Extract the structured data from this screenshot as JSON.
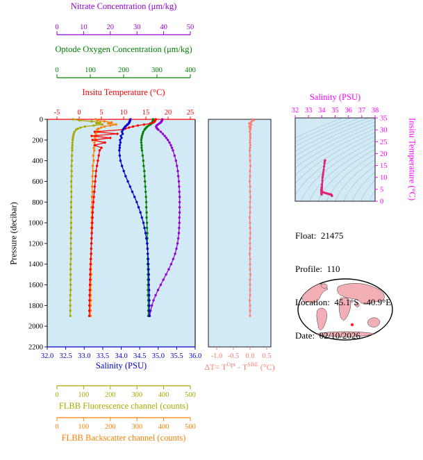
{
  "colors": {
    "plot_bg": "#D2EAF6",
    "frame": "#1A1A1A",
    "temperature": "#FF0000",
    "salinity": "#0000CD",
    "oxygen": "#008000",
    "nitrate": "#9400D3",
    "fluorescence": "#A8A800",
    "backscatter": "#FF8000",
    "delta_t": "#FA8072",
    "ts_labels": "#FF00FF",
    "ts_curve": "#E0246E",
    "contour": "#5E86AE",
    "land": "#F2AFB5",
    "map_marker": "#FF2020"
  },
  "axes": {
    "nitrate": {
      "title": "Nitrate Concentration (μm/kg)",
      "range": [
        0,
        50
      ],
      "ticks": [
        "0",
        "10",
        "20",
        "30",
        "40",
        "50"
      ]
    },
    "oxygen": {
      "title": "Optode Oxygen Concentration (μm/kg)",
      "range": [
        0,
        400
      ],
      "ticks": [
        "0",
        "100",
        "200",
        "300",
        "400"
      ]
    },
    "temperature": {
      "title": "Insitu Temperature (°C)",
      "range": [
        -5,
        25
      ],
      "ticks": [
        "-5",
        "0",
        "5",
        "10",
        "15",
        "20",
        "25"
      ]
    },
    "pressure": {
      "title": "Pressure (decibar)",
      "range": [
        0,
        2200
      ],
      "ticks": [
        "0",
        "200",
        "400",
        "600",
        "800",
        "1000",
        "1200",
        "1400",
        "1600",
        "1800",
        "2000",
        "2200"
      ]
    },
    "salinity": {
      "title": "Salinity (PSU)",
      "range": [
        32,
        36
      ],
      "ticks": [
        "32.0",
        "32.5",
        "33.0",
        "33.5",
        "34.0",
        "34.5",
        "35.0",
        "35.5",
        "36.0"
      ]
    },
    "fluorescence": {
      "title": "FLBB Fluorescence channel (counts)",
      "range": [
        0,
        500
      ],
      "ticks": [
        "0",
        "100",
        "200",
        "300",
        "400",
        "500"
      ]
    },
    "backscatter": {
      "title": "FLBB Backscatter channel (counts)",
      "range": [
        0,
        500
      ],
      "ticks": [
        "0",
        "100",
        "200",
        "300",
        "400",
        "500"
      ]
    },
    "delta_t": {
      "title_parts": [
        "ΔT= T",
        "Opt",
        " - T",
        "SBE",
        " (°C)"
      ],
      "range": [
        -1.25,
        0.625
      ],
      "ticks": [
        "-1.0",
        "-0.5",
        "0.0",
        "0.5"
      ]
    },
    "ts_salinity": {
      "title": "Salinity (PSU)",
      "range": [
        32,
        38
      ],
      "ticks": [
        "32",
        "33",
        "34",
        "35",
        "36",
        "37",
        "38"
      ]
    },
    "ts_temperature": {
      "title": "Insitu Temperature (°C)",
      "range": [
        0,
        35
      ],
      "ticks": [
        "0",
        "5",
        "10",
        "15",
        "20",
        "25",
        "30",
        "35"
      ]
    }
  },
  "float_info": {
    "lines": [
      "Float:  21475",
      "Profile:  110",
      "Location:  45.1°S  -40.9°E",
      "Date:  02/10/2026"
    ]
  },
  "chart_data": [
    {
      "id": "profiles",
      "type": "line",
      "y_axis": "pressure",
      "pressure_dbar": [
        0,
        10,
        20,
        30,
        40,
        50,
        60,
        70,
        80,
        90,
        100,
        120,
        140,
        160,
        180,
        200,
        225,
        250,
        275,
        300,
        350,
        400,
        450,
        500,
        550,
        600,
        650,
        700,
        750,
        800,
        850,
        900,
        950,
        1000,
        1050,
        1100,
        1150,
        1200,
        1250,
        1300,
        1350,
        1400,
        1450,
        1500,
        1550,
        1600,
        1650,
        1700,
        1750,
        1800,
        1850,
        1900
      ],
      "series": [
        {
          "name": "Insitu Temperature (°C)",
          "axis": "temperature",
          "values": [
            17.2,
            17.1,
            17.0,
            16.7,
            16.0,
            14.6,
            13.2,
            12.1,
            11.2,
            10.4,
            9.8,
            3.5,
            8.6,
            2.8,
            7.0,
            3.0,
            5.8,
            3.5,
            5.0,
            4.6,
            4.4,
            4.2,
            4.0,
            3.8,
            3.7,
            3.6,
            3.5,
            3.4,
            3.3,
            3.2,
            3.1,
            3.05,
            3.0,
            2.95,
            2.9,
            2.85,
            2.8,
            2.75,
            2.7,
            2.65,
            2.6,
            2.55,
            2.5,
            2.47,
            2.44,
            2.41,
            2.38,
            2.35,
            2.32,
            2.3,
            2.28,
            2.26
          ]
        },
        {
          "name": "Salinity (PSU)",
          "axis": "salinity",
          "values": [
            34.25,
            34.24,
            34.23,
            34.22,
            34.2,
            34.17,
            34.14,
            34.11,
            34.09,
            34.07,
            34.05,
            34.02,
            34.04,
            33.99,
            34.01,
            33.97,
            33.98,
            33.96,
            33.96,
            33.95,
            33.96,
            33.98,
            34.02,
            34.07,
            34.12,
            34.18,
            34.24,
            34.3,
            34.36,
            34.42,
            34.47,
            34.52,
            34.56,
            34.6,
            34.63,
            34.66,
            34.68,
            34.7,
            34.71,
            34.72,
            34.73,
            34.735,
            34.74,
            34.745,
            34.75,
            34.75,
            34.755,
            34.755,
            34.76,
            34.76,
            34.76,
            34.76
          ]
        },
        {
          "name": "Optode Oxygen Concentration (μm/kg)",
          "axis": "oxygen",
          "values": [
            288,
            288,
            287,
            286,
            284,
            280,
            275,
            271,
            268,
            265,
            263,
            259,
            257,
            255,
            254,
            253,
            253,
            254,
            254,
            255,
            257,
            259,
            260,
            262,
            263,
            264,
            265,
            266,
            267,
            268,
            268,
            269,
            269,
            270,
            270,
            271,
            271,
            271,
            272,
            272,
            272,
            272,
            273,
            273,
            273,
            273,
            273,
            273,
            274,
            274,
            274,
            274
          ]
        },
        {
          "name": "Nitrate Concentration (μm/kg)",
          "axis": "nitrate",
          "values": [
            39.5,
            39.4,
            39.2,
            38.9,
            38.4,
            37.8,
            37.4,
            37.2,
            37.3,
            37.6,
            38.0,
            38.9,
            39.7,
            40.4,
            41.0,
            41.6,
            42.2,
            42.7,
            43.1,
            43.5,
            44.1,
            44.6,
            45.0,
            45.3,
            45.5,
            45.7,
            45.8,
            45.9,
            46.0,
            46.0,
            46.0,
            46.0,
            45.9,
            45.9,
            45.8,
            45.7,
            45.5,
            45.2,
            44.8,
            44.3,
            43.6,
            42.8,
            41.9,
            40.9,
            39.9,
            38.9,
            37.9,
            37.0,
            36.2,
            35.6,
            35.1,
            34.8
          ]
        },
        {
          "name": "FLBB Fluorescence channel (counts)",
          "axis": "fluorescence",
          "values": [
            60,
            85,
            130,
            162,
            148,
            170,
            138,
            105,
            88,
            78,
            72,
            66,
            63,
            61,
            60,
            59,
            58,
            58,
            57,
            57,
            56,
            56,
            55,
            55,
            55,
            54,
            54,
            54,
            54,
            53,
            53,
            53,
            53,
            53,
            53,
            52,
            52,
            52,
            52,
            52,
            52,
            51,
            51,
            51,
            51,
            51,
            51,
            50,
            50,
            50,
            50,
            50
          ]
        },
        {
          "name": "FLBB Backscatter channel (counts)",
          "axis": "backscatter",
          "values": [
            145,
            152,
            178,
            205,
            192,
            222,
            200,
            178,
            165,
            155,
            150,
            158,
            145,
            150,
            142,
            146,
            140,
            143,
            138,
            140,
            136,
            138,
            134,
            135,
            133,
            134,
            132,
            133,
            131,
            132,
            130,
            131,
            130,
            130,
            129,
            130,
            129,
            129,
            128,
            129,
            128,
            128,
            127,
            128,
            127,
            127,
            127,
            126,
            127,
            126,
            126,
            126
          ]
        }
      ]
    },
    {
      "id": "delta_t_profile",
      "type": "line",
      "x_axis": "delta_t",
      "y_axis": "pressure",
      "values": [
        0.08,
        0.11,
        0.05,
        0.02,
        -0.03,
        0.04,
        0.01,
        -0.02,
        0.02,
        0.0,
        0.01,
        -0.01,
        0.01,
        0.0,
        0.01,
        0.0,
        0.0,
        0.01,
        0.0,
        -0.01,
        0.0,
        0.0,
        0.01,
        0.0,
        0.0,
        -0.01,
        0.0,
        0.0,
        0.01,
        0.0,
        0.0,
        0.0,
        -0.01,
        0.0,
        0.0,
        0.01,
        0.0,
        0.0,
        0.0,
        -0.01,
        0.0,
        0.0,
        0.0,
        0.01,
        0.0,
        0.0,
        0.0,
        0.0,
        -0.01,
        0.0,
        0.0,
        0.0
      ]
    },
    {
      "id": "ts_diagram",
      "type": "scatter",
      "x_axis": "ts_salinity",
      "y_axis": "ts_temperature",
      "source": "salinity and temperature series of profiles",
      "has_density_contours": true
    }
  ]
}
